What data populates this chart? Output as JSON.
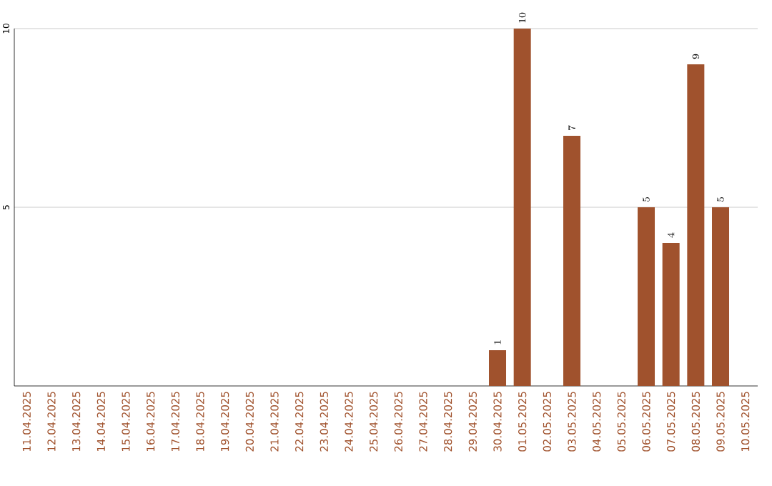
{
  "chart_data": {
    "type": "bar",
    "categories": [
      "11.04.2025",
      "12.04.2025",
      "13.04.2025",
      "14.04.2025",
      "15.04.2025",
      "16.04.2025",
      "17.04.2025",
      "18.04.2025",
      "19.04.2025",
      "20.04.2025",
      "21.04.2025",
      "22.04.2025",
      "23.04.2025",
      "24.04.2025",
      "25.04.2025",
      "26.04.2025",
      "27.04.2025",
      "28.04.2025",
      "29.04.2025",
      "30.04.2025",
      "01.05.2025",
      "02.05.2025",
      "03.05.2025",
      "04.05.2025",
      "05.05.2025",
      "06.05.2025",
      "07.05.2025",
      "08.05.2025",
      "09.05.2025",
      "10.05.2025"
    ],
    "values": [
      null,
      null,
      null,
      null,
      null,
      null,
      null,
      null,
      null,
      null,
      null,
      null,
      null,
      null,
      null,
      null,
      null,
      null,
      null,
      1,
      10,
      null,
      7,
      null,
      null,
      5,
      4,
      9,
      5,
      null
    ],
    "color": "#a0522d",
    "ylim": [
      0,
      10
    ],
    "yticks": [
      5,
      10
    ],
    "grid": "y",
    "data_labels": true
  }
}
